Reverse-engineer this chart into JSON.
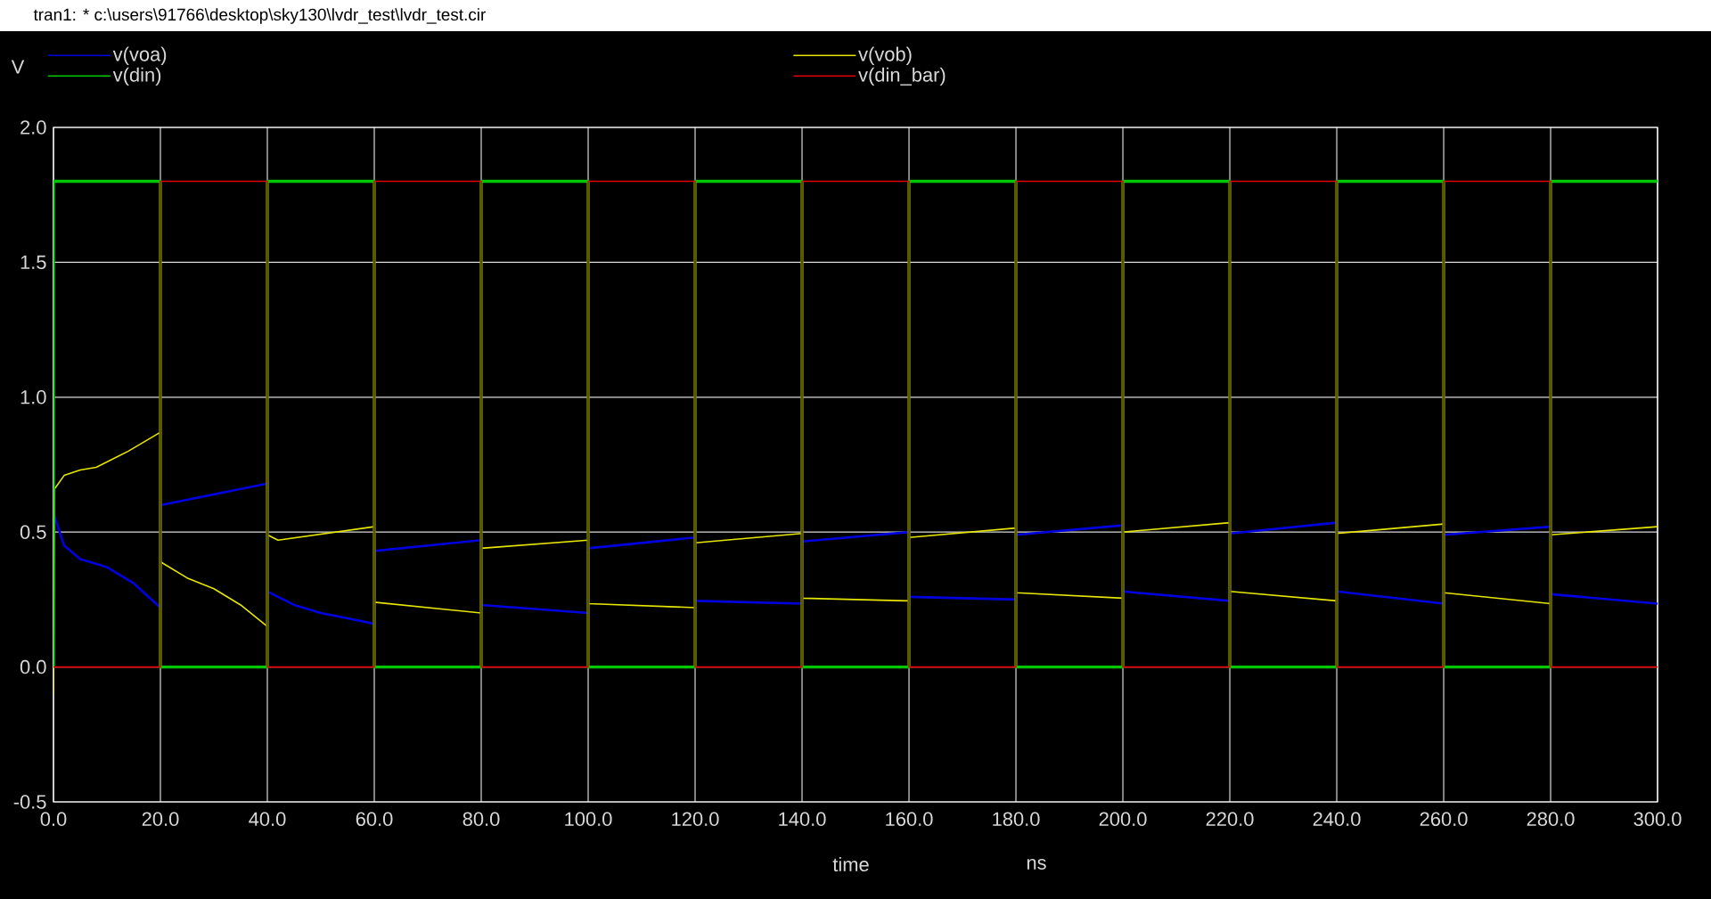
{
  "chart_data": {
    "type": "line",
    "title": "tran1: * c:\\users\\91766\\desktop\\sky130\\lvdr_test\\lvdr_test.cir",
    "xlabel": "time",
    "ylabel": "V",
    "annotations": [
      "ns"
    ],
    "xlim": [
      0,
      300
    ],
    "ylim": [
      -0.5,
      2.0
    ],
    "xticks": [
      {
        "value": 0,
        "label": "0.0"
      },
      {
        "value": 20,
        "label": "20.0"
      },
      {
        "value": 40,
        "label": "40.0"
      },
      {
        "value": 60,
        "label": "60.0"
      },
      {
        "value": 80,
        "label": "80.0"
      },
      {
        "value": 100,
        "label": "100.0"
      },
      {
        "value": 120,
        "label": "120.0"
      },
      {
        "value": 140,
        "label": "140.0"
      },
      {
        "value": 160,
        "label": "160.0"
      },
      {
        "value": 180,
        "label": "180.0"
      },
      {
        "value": 200,
        "label": "200.0"
      },
      {
        "value": 220,
        "label": "220.0"
      },
      {
        "value": 240,
        "label": "240.0"
      },
      {
        "value": 260,
        "label": "260.0"
      },
      {
        "value": 280,
        "label": "280.0"
      },
      {
        "value": 300,
        "label": "300.0"
      }
    ],
    "yticks": [
      {
        "value": -0.5,
        "label": "-0.5"
      },
      {
        "value": 0,
        "label": "0.0"
      },
      {
        "value": 0.5,
        "label": "0.5"
      },
      {
        "value": 1.0,
        "label": "1.0"
      },
      {
        "value": 1.5,
        "label": "1.5"
      },
      {
        "value": 2.0,
        "label": "2.0"
      }
    ],
    "grid": true,
    "legend": "top",
    "series": [
      {
        "name": "v(voa)",
        "color": "#0000e0",
        "x": [
          0,
          2,
          5,
          10,
          15,
          20,
          20,
          40,
          40,
          45,
          50,
          55,
          60,
          60,
          80,
          80,
          100,
          100,
          120,
          120,
          140,
          140,
          160,
          160,
          180,
          180,
          200,
          200,
          220,
          220,
          240,
          240,
          260,
          260,
          280,
          280,
          300
        ],
        "values": [
          0.57,
          0.45,
          0.4,
          0.37,
          0.31,
          0.22,
          0.6,
          0.68,
          0.28,
          0.23,
          0.2,
          0.18,
          0.16,
          0.43,
          0.47,
          0.23,
          0.2,
          0.44,
          0.48,
          0.245,
          0.235,
          0.465,
          0.5,
          0.26,
          0.25,
          0.49,
          0.525,
          0.28,
          0.245,
          0.495,
          0.535,
          0.28,
          0.235,
          0.49,
          0.52,
          0.27,
          0.235
        ]
      },
      {
        "name": "v(vob)",
        "color": "#e6e600",
        "x": [
          0,
          0.2,
          2,
          5,
          8,
          14,
          20,
          20,
          25,
          30,
          35,
          40,
          40,
          42,
          60,
          60,
          80,
          80,
          100,
          100,
          120,
          120,
          140,
          140,
          160,
          160,
          180,
          180,
          200,
          200,
          220,
          220,
          240,
          240,
          260,
          260,
          280,
          280,
          300
        ],
        "values": [
          -0.1,
          0.66,
          0.71,
          0.73,
          0.74,
          0.8,
          0.87,
          0.39,
          0.33,
          0.29,
          0.23,
          0.15,
          0.49,
          0.47,
          0.52,
          0.24,
          0.2,
          0.44,
          0.47,
          0.235,
          0.22,
          0.46,
          0.495,
          0.255,
          0.245,
          0.48,
          0.515,
          0.275,
          0.255,
          0.5,
          0.535,
          0.28,
          0.245,
          0.495,
          0.53,
          0.275,
          0.235,
          0.49,
          0.52
        ]
      },
      {
        "name": "v(din)",
        "color": "#00c800",
        "x": [
          0,
          0,
          20,
          20,
          40,
          40,
          60,
          60,
          80,
          80,
          100,
          100,
          120,
          120,
          140,
          140,
          160,
          160,
          180,
          180,
          200,
          200,
          220,
          220,
          240,
          240,
          260,
          260,
          280,
          280,
          300
        ],
        "values": [
          0,
          1.8,
          1.8,
          0,
          0,
          1.8,
          1.8,
          0,
          0,
          1.8,
          1.8,
          0,
          0,
          1.8,
          1.8,
          0,
          0,
          1.8,
          1.8,
          0,
          0,
          1.8,
          1.8,
          0,
          0,
          1.8,
          1.8,
          0,
          0,
          1.8,
          1.8
        ]
      },
      {
        "name": "v(din_bar)",
        "color": "#e00000",
        "x": [
          0,
          20,
          20,
          40,
          40,
          60,
          60,
          80,
          80,
          100,
          100,
          120,
          120,
          140,
          140,
          160,
          160,
          180,
          180,
          200,
          200,
          220,
          220,
          240,
          240,
          260,
          260,
          280,
          280,
          300
        ],
        "values": [
          0,
          0,
          1.8,
          1.8,
          0,
          0,
          1.8,
          1.8,
          0,
          0,
          1.8,
          1.8,
          0,
          0,
          1.8,
          1.8,
          0,
          0,
          1.8,
          1.8,
          0,
          0,
          1.8,
          1.8,
          0,
          0,
          1.8,
          1.8,
          0,
          0
        ]
      }
    ]
  }
}
